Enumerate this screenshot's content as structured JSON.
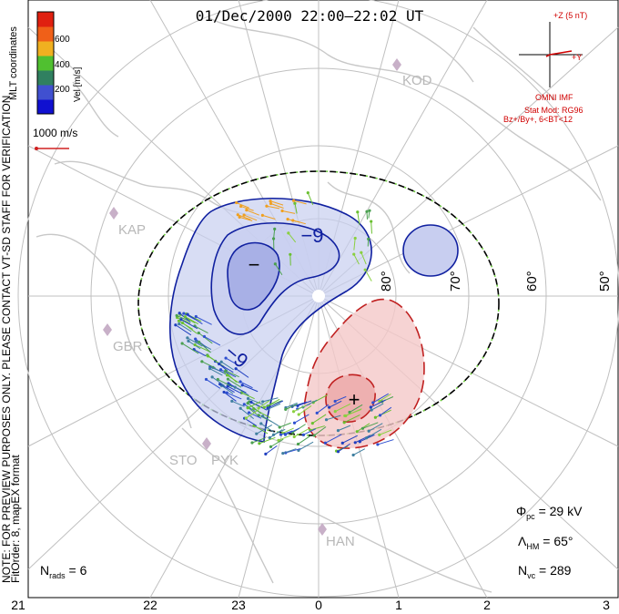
{
  "title": "01/Dec/2000 22:00–22:02 UT",
  "notes": {
    "mlt_coordinates": "MLT coordinates",
    "preview": "NOTE: FOR PREVIEW PURPOSES ONLY. PLEASE CONTACT VT-SD STAFF FOR VERIFICATION.",
    "fit_order": "FitOrder: 8, mapEX format"
  },
  "colorbar": {
    "label": "Vel [m/s]",
    "ticks": [
      "600",
      "400",
      "200"
    ],
    "colors": [
      "#e02010",
      "#f06018",
      "#f0b020",
      "#50c030",
      "#308060",
      "#4050d0",
      "#1010d0"
    ]
  },
  "scale_vector": {
    "label": "1000 m/s",
    "color": "#d02020"
  },
  "imf": {
    "z_label": "+Z (5 nT)",
    "y_label": "+Y",
    "source": "OMNI IMF",
    "stat_model": "Stat Mod: RG96",
    "condition": "Bz+/By+, 6<BT<12",
    "color": "#d00000"
  },
  "stats": {
    "phi_pc": {
      "symbol": "Φ",
      "sub": "pc",
      "value": "= 29 kV"
    },
    "lambda_hm": {
      "symbol": "Λ",
      "sub": "HM",
      "value": "= 65°"
    },
    "n_vc": {
      "symbol": "N",
      "sub": "vc",
      "value": "= 289"
    },
    "n_rads": {
      "symbol": "N",
      "sub": "rads",
      "value": "= 6"
    }
  },
  "mlt_labels": [
    "21",
    "22",
    "23",
    "0",
    "1",
    "2",
    "3"
  ],
  "lat_labels": [
    "80°",
    "70°",
    "60°",
    "50°"
  ],
  "sites": [
    "KOD",
    "KAP",
    "GBR",
    "STO",
    "PYK",
    "HAN"
  ],
  "contours": {
    "negative_label": "−",
    "positive_label": "+",
    "value_labels": [
      "−9",
      "−9"
    ],
    "negative_fill": "#c8cef0",
    "positive_fill": "#f4c8c8",
    "negative_line": "#1020a0",
    "positive_line": "#c02020"
  }
}
